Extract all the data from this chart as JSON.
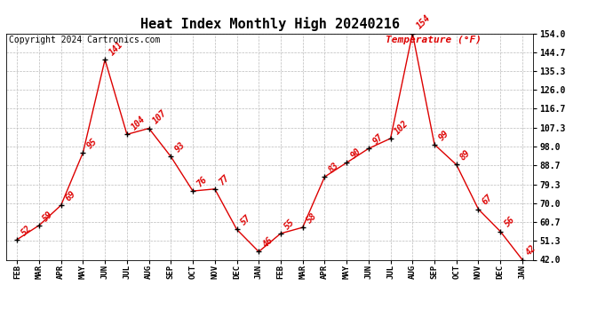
{
  "title": "Heat Index Monthly High 20240216",
  "copyright": "Copyright 2024 Cartronics.com",
  "ylabel": "Temperature (°F)",
  "months": [
    "FEB",
    "MAR",
    "APR",
    "MAY",
    "JUN",
    "JUL",
    "AUG",
    "SEP",
    "OCT",
    "NOV",
    "DEC",
    "JAN",
    "FEB",
    "MAR",
    "APR",
    "MAY",
    "JUN",
    "JUL",
    "AUG",
    "SEP",
    "OCT",
    "NOV",
    "DEC",
    "JAN"
  ],
  "values": [
    52,
    59,
    69,
    95,
    141,
    104,
    107,
    93,
    76,
    77,
    57,
    46,
    55,
    58,
    83,
    90,
    97,
    102,
    154,
    99,
    89,
    67,
    56,
    42
  ],
  "yticks": [
    42.0,
    51.3,
    60.7,
    70.0,
    79.3,
    88.7,
    98.0,
    107.3,
    116.7,
    126.0,
    135.3,
    144.7,
    154.0
  ],
  "line_color": "#dd0000",
  "marker_color": "#000000",
  "label_color": "#dd0000",
  "title_color": "#000000",
  "copyright_color": "#000000",
  "ylabel_color": "#dd0000",
  "background_color": "#ffffff",
  "grid_color": "#bbbbbb",
  "ylim": [
    42.0,
    154.0
  ],
  "title_fontsize": 11,
  "label_fontsize": 7,
  "copyright_fontsize": 7,
  "ylabel_fontsize": 8,
  "tick_fontsize": 7,
  "xtick_fontsize": 6.5
}
